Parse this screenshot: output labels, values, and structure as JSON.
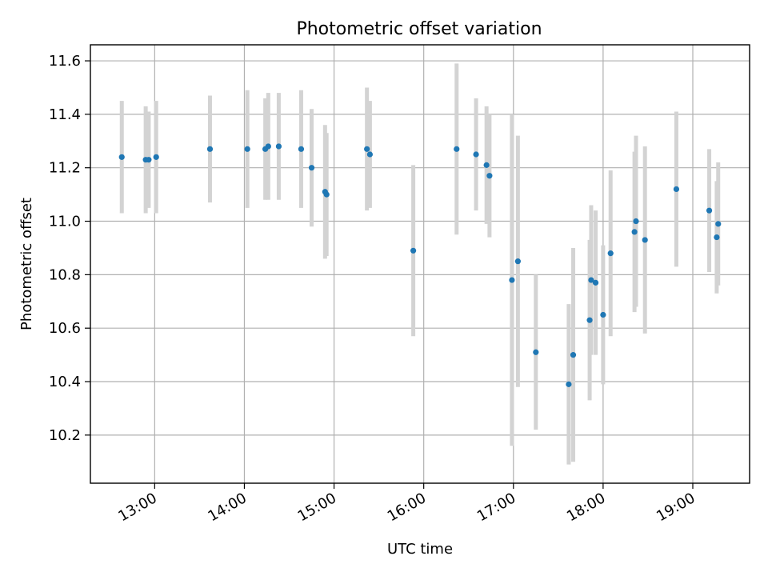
{
  "chart_data": {
    "type": "scatter",
    "title": "Photometric offset variation",
    "xlabel": "UTC time",
    "ylabel": "Photometric offset",
    "xlim": [
      "12:17",
      "19:38"
    ],
    "ylim": [
      10.02,
      11.66
    ],
    "x_ticks": [
      "13:00",
      "14:00",
      "15:00",
      "16:00",
      "17:00",
      "18:00",
      "19:00"
    ],
    "y_ticks": [
      10.2,
      10.4,
      10.6,
      10.8,
      11.0,
      11.2,
      11.4,
      11.6
    ],
    "grid": true,
    "colors": {
      "point": "#1f77b4",
      "errorbar": "#d3d3d3",
      "grid": "#b0b0b0"
    },
    "points": [
      {
        "time": "12:38",
        "y": 11.24,
        "err": 0.21
      },
      {
        "time": "12:54",
        "y": 11.23,
        "err": 0.2
      },
      {
        "time": "12:56",
        "y": 11.23,
        "err": 0.18
      },
      {
        "time": "13:01",
        "y": 11.24,
        "err": 0.21
      },
      {
        "time": "13:37",
        "y": 11.27,
        "err": 0.2
      },
      {
        "time": "14:02",
        "y": 11.27,
        "err": 0.22
      },
      {
        "time": "14:14",
        "y": 11.27,
        "err": 0.19
      },
      {
        "time": "14:16",
        "y": 11.28,
        "err": 0.2
      },
      {
        "time": "14:23",
        "y": 11.28,
        "err": 0.2
      },
      {
        "time": "14:38",
        "y": 11.27,
        "err": 0.22
      },
      {
        "time": "14:45",
        "y": 11.2,
        "err": 0.22
      },
      {
        "time": "14:54",
        "y": 11.11,
        "err": 0.25
      },
      {
        "time": "14:55",
        "y": 11.1,
        "err": 0.23
      },
      {
        "time": "15:22",
        "y": 11.27,
        "err": 0.23
      },
      {
        "time": "15:24",
        "y": 11.25,
        "err": 0.2
      },
      {
        "time": "15:53",
        "y": 10.89,
        "err": 0.32
      },
      {
        "time": "16:22",
        "y": 11.27,
        "err": 0.32
      },
      {
        "time": "16:35",
        "y": 11.25,
        "err": 0.21
      },
      {
        "time": "16:42",
        "y": 11.21,
        "err": 0.22
      },
      {
        "time": "16:44",
        "y": 11.17,
        "err": 0.23
      },
      {
        "time": "16:59",
        "y": 10.78,
        "err": 0.62
      },
      {
        "time": "17:03",
        "y": 10.85,
        "err": 0.47
      },
      {
        "time": "17:15",
        "y": 10.51,
        "err": 0.29
      },
      {
        "time": "17:37",
        "y": 10.39,
        "err": 0.3
      },
      {
        "time": "17:40",
        "y": 10.5,
        "err": 0.4
      },
      {
        "time": "17:51",
        "y": 10.63,
        "err": 0.3
      },
      {
        "time": "17:52",
        "y": 10.78,
        "err": 0.28
      },
      {
        "time": "17:55",
        "y": 10.77,
        "err": 0.27
      },
      {
        "time": "18:00",
        "y": 10.65,
        "err": 0.26
      },
      {
        "time": "18:05",
        "y": 10.88,
        "err": 0.31
      },
      {
        "time": "18:21",
        "y": 10.96,
        "err": 0.3
      },
      {
        "time": "18:22",
        "y": 11.0,
        "err": 0.32
      },
      {
        "time": "18:28",
        "y": 10.93,
        "err": 0.35
      },
      {
        "time": "18:49",
        "y": 11.12,
        "err": 0.29
      },
      {
        "time": "19:11",
        "y": 11.04,
        "err": 0.23
      },
      {
        "time": "19:16",
        "y": 10.94,
        "err": 0.21
      },
      {
        "time": "19:17",
        "y": 10.99,
        "err": 0.23
      }
    ]
  }
}
